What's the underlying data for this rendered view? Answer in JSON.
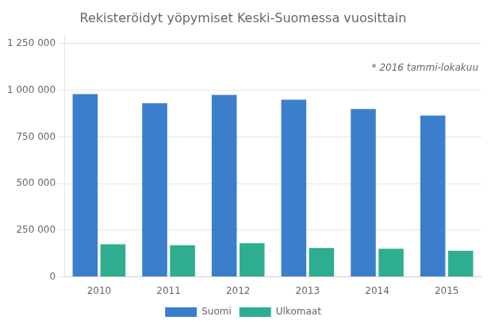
{
  "chart_data": {
    "type": "bar",
    "title": "Rekisteröidyt yöpymiset Keski-Suomessa vuosittain",
    "annotation": "* 2016 tammi-lokakuu",
    "categories": [
      "2010",
      "2011",
      "2012",
      "2013",
      "2014",
      "2015"
    ],
    "series": [
      {
        "name": "Suomi",
        "color": "#3B7FCC",
        "values": [
          980000,
          930000,
          975000,
          950000,
          900000,
          865000
        ]
      },
      {
        "name": "Ulkomaat",
        "color": "#2EAD91",
        "values": [
          175000,
          170000,
          180000,
          155000,
          150000,
          140000
        ]
      }
    ],
    "ylim": [
      0,
      1300000
    ],
    "yticks": [
      0,
      {
        "value": 250000,
        "label": "250 000"
      },
      {
        "value": 500000,
        "label": "500 000"
      },
      {
        "value": 750000,
        "label": "750 000"
      },
      {
        "value": 1000000,
        "label": "1 000 000"
      },
      {
        "value": 1250000,
        "label": "1 250 000"
      }
    ],
    "grid": true,
    "legend": "bottom"
  }
}
